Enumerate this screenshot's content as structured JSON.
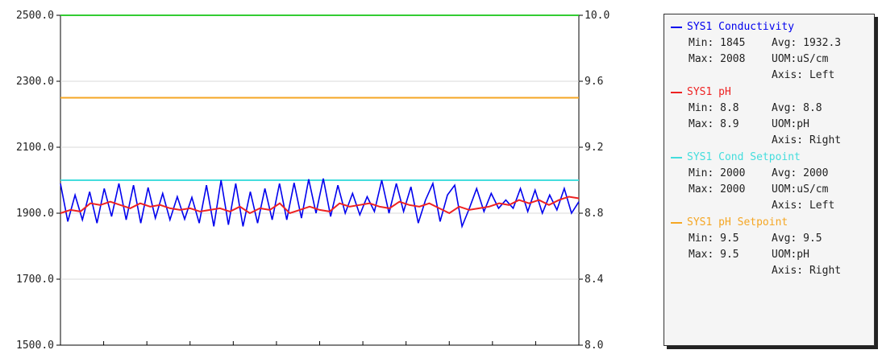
{
  "chart_data": {
    "type": "line",
    "left_axis": {
      "ticks": [
        "2500.0",
        "2300.0",
        "2100.0",
        "1900.0",
        "1700.0",
        "1500.0"
      ],
      "min": 1500,
      "max": 2500
    },
    "right_axis": {
      "ticks": [
        "10.0",
        "9.6",
        "9.2",
        "8.8",
        "8.4",
        "8.0"
      ],
      "min": 8.0,
      "max": 10.0
    },
    "x_divisions": 12,
    "grid": true,
    "series": [
      {
        "name": "SYS1 Conductivity",
        "axis": "left",
        "color": "#0000ee",
        "values": [
          1990,
          1875,
          1955,
          1880,
          1965,
          1870,
          1975,
          1890,
          1990,
          1880,
          1985,
          1870,
          1978,
          1885,
          1960,
          1880,
          1950,
          1882,
          1948,
          1870,
          1985,
          1860,
          2000,
          1865,
          1990,
          1860,
          1965,
          1870,
          1975,
          1880,
          1990,
          1880,
          1992,
          1885,
          2003,
          1900,
          2005,
          1890,
          1985,
          1900,
          1960,
          1895,
          1950,
          1905,
          2000,
          1900,
          1990,
          1905,
          1980,
          1870,
          1940,
          1990,
          1875,
          1955,
          1985,
          1860,
          1915,
          1975,
          1905,
          1960,
          1915,
          1940,
          1915,
          1975,
          1905,
          1970,
          1900,
          1955,
          1910,
          1975,
          1900,
          1935
        ],
        "stats": {
          "min": "1845",
          "avg": "1932.3",
          "max": "2008",
          "uom": "uS/cm",
          "axis": "Left"
        }
      },
      {
        "name": "SYS1 pH",
        "axis": "right",
        "color": "#ee2222",
        "values": [
          8.8,
          8.82,
          8.81,
          8.86,
          8.85,
          8.87,
          8.85,
          8.83,
          8.86,
          8.84,
          8.85,
          8.83,
          8.82,
          8.83,
          8.81,
          8.82,
          8.83,
          8.81,
          8.84,
          8.8,
          8.83,
          8.82,
          8.86,
          8.8,
          8.82,
          8.84,
          8.82,
          8.81,
          8.86,
          8.84,
          8.85,
          8.86,
          8.84,
          8.83,
          8.87,
          8.85,
          8.84,
          8.86,
          8.83,
          8.8,
          8.84,
          8.82,
          8.83,
          8.84,
          8.86,
          8.85,
          8.88,
          8.86,
          8.88,
          8.85,
          8.88,
          8.9,
          8.89
        ],
        "stats": {
          "min": "8.8",
          "avg": "8.8",
          "max": "8.9",
          "uom": "pH",
          "axis": "Right"
        }
      },
      {
        "name": "SYS1 Cond Setpoint",
        "axis": "left",
        "color": "#44dddd",
        "values": [
          2000,
          2000
        ],
        "stats": {
          "min": "2000",
          "avg": "2000",
          "max": "2000",
          "uom": "uS/cm",
          "axis": "Left"
        }
      },
      {
        "name": "SYS1 pH Setpoint",
        "axis": "right",
        "color": "#f5a623",
        "values": [
          9.5,
          9.5
        ],
        "stats": {
          "min": "9.5",
          "avg": "9.5",
          "max": "9.5",
          "uom": "pH",
          "axis": "Right"
        }
      },
      {
        "axis": "right",
        "color": "#33cc33",
        "values": [
          10.0,
          10.0
        ]
      }
    ]
  },
  "legend": {
    "min_prefix": "Min: ",
    "max_prefix": "Max: ",
    "avg_prefix": "Avg: ",
    "uom_prefix": "UOM:",
    "axis_prefix": "Axis: "
  }
}
